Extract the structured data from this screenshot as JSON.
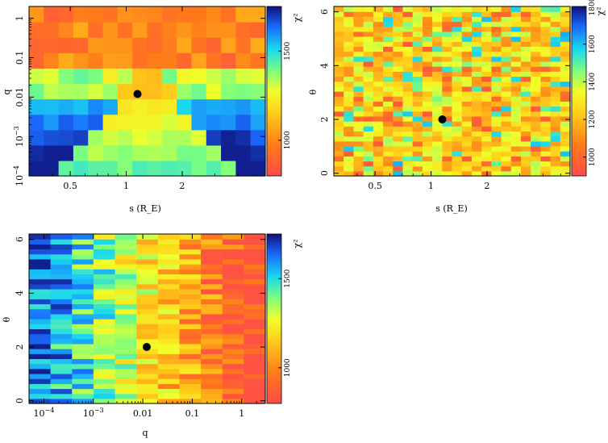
{
  "figure": "chi-squared grid search maps",
  "chart_data": [
    {
      "id": "panel-s-q",
      "type": "heatmap",
      "title": "",
      "xlabel": "s (R_E)",
      "ylabel": "q",
      "xscale": "log",
      "yscale": "log",
      "xlim": [
        0.3,
        5.6
      ],
      "ylim": [
        0.0001,
        2
      ],
      "x_ticks": [
        0.5,
        1,
        2
      ],
      "x_tick_labels": [
        "0.5",
        "1",
        "2"
      ],
      "y_ticks": [
        0.0001,
        0.001,
        0.01,
        0.1,
        1
      ],
      "y_tick_labels": [
        "10^-4",
        "10^-3",
        "0.01",
        "0.1",
        "1"
      ],
      "colorbar": {
        "label": "χ²",
        "ticks": [
          1000,
          1500
        ],
        "tick_labels": [
          "1000",
          "1500"
        ],
        "range": [
          800,
          1750
        ]
      },
      "best_fit": {
        "x": 1.15,
        "y": 0.012
      },
      "grid": {
        "nx": 16,
        "ny": 11,
        "pattern": "v-shaped low-chi2 valley around s=1, higher q yields lower chi2"
      }
    },
    {
      "id": "panel-s-theta",
      "type": "heatmap",
      "title": "",
      "xlabel": "s (R_E)",
      "ylabel": "θ",
      "xscale": "log",
      "yscale": "linear",
      "xlim": [
        0.3,
        5.6
      ],
      "ylim": [
        -0.1,
        6.2
      ],
      "x_ticks": [
        0.5,
        1,
        2
      ],
      "x_tick_labels": [
        "0.5",
        "1",
        "2"
      ],
      "y_ticks": [
        0,
        2,
        4,
        6
      ],
      "y_tick_labels": [
        "0",
        "2",
        "4",
        "6"
      ],
      "colorbar": {
        "label": "χ²",
        "ticks": [
          1000,
          1200,
          1400,
          1600,
          1800
        ],
        "tick_labels": [
          "1000",
          "1200",
          "1400",
          "1600",
          "1800"
        ],
        "range": [
          900,
          1800
        ]
      },
      "best_fit": {
        "x": 1.15,
        "y": 2.0
      },
      "grid": {
        "nx": 24,
        "ny": 34,
        "pattern": "mostly yellow/orange with scattered red and cyan cells"
      }
    },
    {
      "id": "panel-q-theta",
      "type": "heatmap",
      "title": "",
      "xlabel": "q",
      "ylabel": "θ",
      "xscale": "log",
      "yscale": "linear",
      "xlim": [
        5e-05,
        3
      ],
      "ylim": [
        -0.1,
        6.2
      ],
      "x_ticks": [
        0.0001,
        0.001,
        0.01,
        0.1,
        1
      ],
      "x_tick_labels": [
        "10^-4",
        "10^-3",
        "0.01",
        "0.1",
        "1"
      ],
      "y_ticks": [
        0,
        2,
        4,
        6
      ],
      "y_tick_labels": [
        "0",
        "2",
        "4",
        "6"
      ],
      "colorbar": {
        "label": "χ²",
        "ticks": [
          1000,
          1500
        ],
        "tick_labels": [
          "1000",
          "1500"
        ],
        "range": [
          800,
          1750
        ]
      },
      "best_fit": {
        "x": 0.012,
        "y": 2.0
      },
      "grid": {
        "nx": 11,
        "ny": 34,
        "pattern": "chi2 decreases with increasing q; blue at low q, red at high q"
      }
    }
  ],
  "colorbar_label": "χ²"
}
